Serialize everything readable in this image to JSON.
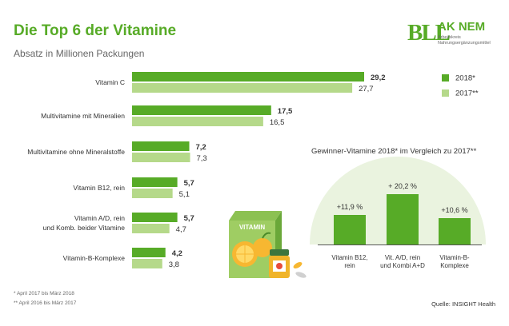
{
  "header": {
    "title": "Die Top 6 der Vitamine",
    "subtitle": "Absatz in Millionen Packungen"
  },
  "logo": {
    "mark": "BLL",
    "name": "AK NEM",
    "line1": "Arbeitskreis",
    "line2": "Nahrungsergänzungsmittel"
  },
  "colors": {
    "series_2018": "#57ab27",
    "series_2017": "#b5d98a",
    "title_green": "#57ab27",
    "highlight_circle": "#eaf3df"
  },
  "illustration": {
    "box_label": "VITAMIN"
  },
  "footnotes": {
    "note1": "*   April 2017 bis März 2018",
    "note2": "** April 2016 bis März 2017",
    "source": "Quelle: INSIGHT Health"
  },
  "chart_data": [
    {
      "type": "bar",
      "orientation": "horizontal",
      "categories": [
        "Vitamin C",
        "Multivitamine mit Mineralien",
        "Multivitamine ohne Mineralstoffe",
        "Vitamin B12, rein",
        "Vitamin A/D, rein\nund Komb. beider Vitamine",
        "Vitamin-B-Komplexe"
      ],
      "series": [
        {
          "name": "2018*",
          "values": [
            29.2,
            17.5,
            7.2,
            5.7,
            5.7,
            4.2
          ],
          "labels": [
            "29,2",
            "17,5",
            "7,2",
            "5,7",
            "5,7",
            "4,2"
          ],
          "color": "#57ab27"
        },
        {
          "name": "2017**",
          "values": [
            27.7,
            16.5,
            7.3,
            5.1,
            4.7,
            3.8
          ],
          "labels": [
            "27,7",
            "16,5",
            "7,3",
            "5,1",
            "4,7",
            "3,8"
          ],
          "color": "#b5d98a"
        }
      ],
      "xlim": [
        0,
        29.2
      ],
      "legend": "top-right",
      "grid": false
    },
    {
      "type": "bar",
      "title": "Gewinner-Vitamine 2018* im Vergleich zu 2017**",
      "categories": [
        "Vitamin B12,\nrein",
        "Vit. A/D, rein\nund Kombi A+D",
        "Vitamin-B-\nKomplexe"
      ],
      "values": [
        11.9,
        20.2,
        10.6
      ],
      "labels": [
        "+11,9 %",
        "+ 20,2 %",
        "+10,6 %"
      ],
      "unit": "%",
      "ylim": [
        0,
        20.2
      ],
      "grid": false
    }
  ]
}
